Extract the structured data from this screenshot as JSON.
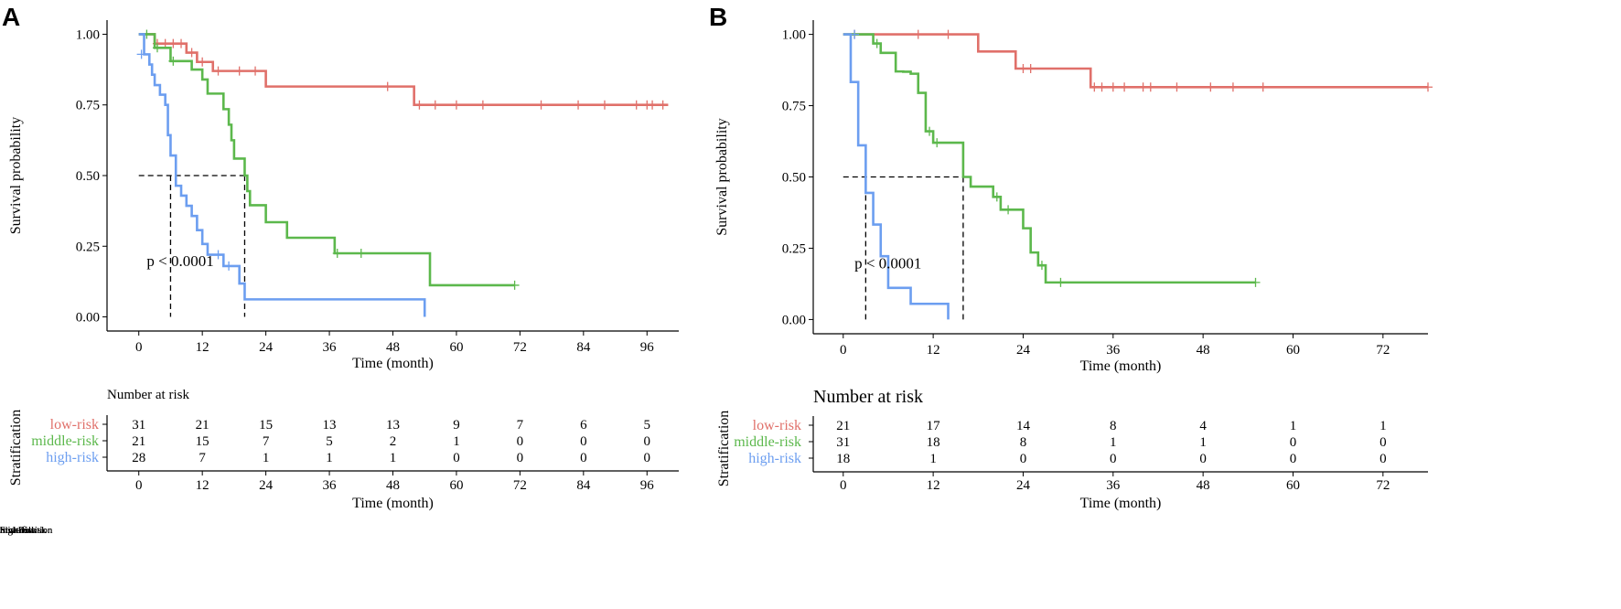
{
  "chart_data": [
    {
      "type": "line",
      "subtype": "kaplan-meier",
      "panel_label": "A",
      "xlabel": "Time (month)",
      "ylabel": "Survival probability",
      "xlim": [
        -6,
        102
      ],
      "ylim": [
        -0.05,
        1.05
      ],
      "xticks": [
        0,
        12,
        24,
        36,
        48,
        60,
        72,
        84,
        96
      ],
      "yticks": [
        0.0,
        0.25,
        0.5,
        0.75,
        1.0
      ],
      "ytick_labels": [
        "0.00",
        "0.25",
        "0.50",
        "0.75",
        "1.00"
      ],
      "pvalue_text": "p < 0.0001",
      "pvalue_pos": [
        1.5,
        0.18
      ],
      "median_lines": [
        {
          "x0": 0,
          "y": 0.5,
          "xs": [
            6,
            20
          ]
        }
      ],
      "series": [
        {
          "name": "low-risk",
          "color": "#e0706a",
          "steps": [
            [
              0,
              1.0
            ],
            [
              3,
              0.967
            ],
            [
              9,
              0.935
            ],
            [
              11,
              0.902
            ],
            [
              13,
              0.902
            ],
            [
              14,
              0.87
            ],
            [
              17,
              0.87
            ],
            [
              24,
              0.815
            ],
            [
              45,
              0.815
            ],
            [
              52,
              0.75
            ],
            [
              100,
              0.75
            ]
          ],
          "censor": [
            [
              3.5,
              0.967
            ],
            [
              5,
              0.967
            ],
            [
              6.5,
              0.967
            ],
            [
              8,
              0.967
            ],
            [
              10,
              0.935
            ],
            [
              12,
              0.902
            ],
            [
              15,
              0.87
            ],
            [
              19,
              0.87
            ],
            [
              22,
              0.87
            ],
            [
              47,
              0.815
            ],
            [
              53,
              0.75
            ],
            [
              56,
              0.75
            ],
            [
              60,
              0.75
            ],
            [
              65,
              0.75
            ],
            [
              76,
              0.75
            ],
            [
              83,
              0.75
            ],
            [
              88,
              0.75
            ],
            [
              94,
              0.75
            ],
            [
              96,
              0.75
            ],
            [
              97,
              0.75
            ],
            [
              99,
              0.75
            ]
          ]
        },
        {
          "name": "middle-risk",
          "color": "#5cb84c",
          "steps": [
            [
              0,
              1.0
            ],
            [
              3,
              0.952
            ],
            [
              5,
              0.952
            ],
            [
              6,
              0.905
            ],
            [
              9,
              0.905
            ],
            [
              10,
              0.875
            ],
            [
              12,
              0.84
            ],
            [
              13,
              0.79
            ],
            [
              16,
              0.735
            ],
            [
              17,
              0.68
            ],
            [
              17.5,
              0.625
            ],
            [
              18,
              0.56
            ],
            [
              20,
              0.5
            ],
            [
              20.5,
              0.445
            ],
            [
              21,
              0.395
            ],
            [
              24,
              0.335
            ],
            [
              28,
              0.28
            ],
            [
              33,
              0.28
            ],
            [
              37,
              0.225
            ],
            [
              54,
              0.225
            ],
            [
              55,
              0.112
            ],
            [
              71,
              0.112
            ]
          ],
          "censor": [
            [
              1.5,
              1.0
            ],
            [
              3.5,
              0.952
            ],
            [
              6.5,
              0.905
            ],
            [
              37.5,
              0.225
            ],
            [
              42,
              0.225
            ],
            [
              71,
              0.112
            ]
          ]
        },
        {
          "name": "high-risk",
          "color": "#6c9ef0",
          "steps": [
            [
              0,
              1.0
            ],
            [
              1,
              0.929
            ],
            [
              2,
              0.893
            ],
            [
              2.5,
              0.857
            ],
            [
              3,
              0.82
            ],
            [
              4,
              0.786
            ],
            [
              5,
              0.75
            ],
            [
              5.5,
              0.643
            ],
            [
              6,
              0.571
            ],
            [
              7,
              0.464
            ],
            [
              8,
              0.429
            ],
            [
              9,
              0.393
            ],
            [
              10,
              0.357
            ],
            [
              11,
              0.307
            ],
            [
              12,
              0.258
            ],
            [
              13,
              0.22
            ],
            [
              16,
              0.18
            ],
            [
              19,
              0.118
            ],
            [
              20,
              0.062
            ],
            [
              54,
              0.062
            ],
            [
              54,
              0.0
            ]
          ],
          "censor": [
            [
              0.5,
              0.929
            ],
            [
              15,
              0.22
            ],
            [
              17,
              0.18
            ]
          ]
        }
      ],
      "legend": {
        "title": "Stratification",
        "position": "bottom"
      },
      "risk_table": {
        "title": "Number at risk",
        "ylabel": "Stratification",
        "xlabel": "Time (month)",
        "times": [
          0,
          12,
          24,
          36,
          48,
          60,
          72,
          84,
          96
        ],
        "rows": [
          {
            "name": "low-risk",
            "color": "#e0706a",
            "values": [
              "31",
              "21",
              "15",
              "13",
              "13",
              "9",
              "7",
              "6",
              "5"
            ]
          },
          {
            "name": "middle-risk",
            "color": "#5cb84c",
            "values": [
              "21",
              "15",
              "7",
              "5",
              "2",
              "1",
              "0",
              "0",
              "0"
            ]
          },
          {
            "name": "high-risk",
            "color": "#6c9ef0",
            "values": [
              "28",
              "7",
              "1",
              "1",
              "1",
              "0",
              "0",
              "0",
              "0"
            ]
          }
        ]
      }
    },
    {
      "type": "line",
      "subtype": "kaplan-meier",
      "panel_label": "B",
      "xlabel": "Time (month)",
      "ylabel": "Survival probability",
      "xlim": [
        -4,
        78
      ],
      "ylim": [
        -0.05,
        1.05
      ],
      "xticks": [
        0,
        12,
        24,
        36,
        48,
        60,
        72
      ],
      "yticks": [
        0.0,
        0.25,
        0.5,
        0.75,
        1.0
      ],
      "ytick_labels": [
        "0.00",
        "0.25",
        "0.50",
        "0.75",
        "1.00"
      ],
      "pvalue_text": "p < 0.0001",
      "pvalue_pos": [
        1.5,
        0.18
      ],
      "median_lines": [
        {
          "x0": 0,
          "y": 0.5,
          "xs": [
            3,
            16
          ]
        }
      ],
      "series": [
        {
          "name": "low-risk",
          "color": "#e0706a",
          "steps": [
            [
              0,
              1.0
            ],
            [
              18,
              0.94
            ],
            [
              23,
              0.88
            ],
            [
              33,
              0.815
            ],
            [
              78,
              0.815
            ]
          ],
          "censor": [
            [
              1.5,
              1.0
            ],
            [
              10,
              1.0
            ],
            [
              14,
              1.0
            ],
            [
              24,
              0.88
            ],
            [
              25,
              0.88
            ],
            [
              33.5,
              0.815
            ],
            [
              34.5,
              0.815
            ],
            [
              36,
              0.815
            ],
            [
              37.5,
              0.815
            ],
            [
              40,
              0.815
            ],
            [
              41,
              0.815
            ],
            [
              44.5,
              0.815
            ],
            [
              49,
              0.815
            ],
            [
              52,
              0.815
            ],
            [
              56,
              0.815
            ],
            [
              78,
              0.815
            ]
          ]
        },
        {
          "name": "middle-risk",
          "color": "#5cb84c",
          "steps": [
            [
              0,
              1.0
            ],
            [
              4,
              0.968
            ],
            [
              5,
              0.935
            ],
            [
              7,
              0.87
            ],
            [
              8,
              0.869
            ],
            [
              9,
              0.862
            ],
            [
              10,
              0.795
            ],
            [
              11,
              0.66
            ],
            [
              12,
              0.62
            ],
            [
              15,
              0.62
            ],
            [
              16,
              0.5
            ],
            [
              17,
              0.466
            ],
            [
              19,
              0.466
            ],
            [
              20,
              0.43
            ],
            [
              21,
              0.385
            ],
            [
              24,
              0.32
            ],
            [
              25,
              0.235
            ],
            [
              26,
              0.19
            ],
            [
              27,
              0.13
            ],
            [
              55,
              0.13
            ]
          ],
          "censor": [
            [
              4.5,
              0.968
            ],
            [
              11.5,
              0.66
            ],
            [
              12.5,
              0.62
            ],
            [
              20.5,
              0.43
            ],
            [
              22,
              0.385
            ],
            [
              26.5,
              0.19
            ],
            [
              29,
              0.13
            ],
            [
              55,
              0.13
            ]
          ]
        },
        {
          "name": "high-risk",
          "color": "#6c9ef0",
          "steps": [
            [
              0,
              1.0
            ],
            [
              1,
              0.833
            ],
            [
              2,
              0.611
            ],
            [
              3,
              0.444
            ],
            [
              4,
              0.333
            ],
            [
              5,
              0.222
            ],
            [
              6,
              0.111
            ],
            [
              9,
              0.055
            ],
            [
              14,
              0.0
            ]
          ],
          "censor": [
            [
              1.5,
              1.0
            ]
          ]
        }
      ],
      "legend": {
        "title": "Stratification",
        "position": "bottom"
      },
      "risk_table": {
        "title": "Number at risk",
        "ylabel": "Stratification",
        "xlabel": "Time (month)",
        "times": [
          0,
          12,
          24,
          36,
          48,
          60,
          72
        ],
        "rows": [
          {
            "name": "low-risk",
            "color": "#e0706a",
            "values": [
              "21",
              "17",
              "14",
              "8",
              "4",
              "1",
              "1"
            ]
          },
          {
            "name": "middle-risk",
            "color": "#5cb84c",
            "values": [
              "31",
              "18",
              "8",
              "1",
              "1",
              "0",
              "0"
            ]
          },
          {
            "name": "high-risk",
            "color": "#6c9ef0",
            "values": [
              "18",
              "1",
              "0",
              "0",
              "0",
              "0",
              "0"
            ]
          }
        ]
      }
    }
  ]
}
